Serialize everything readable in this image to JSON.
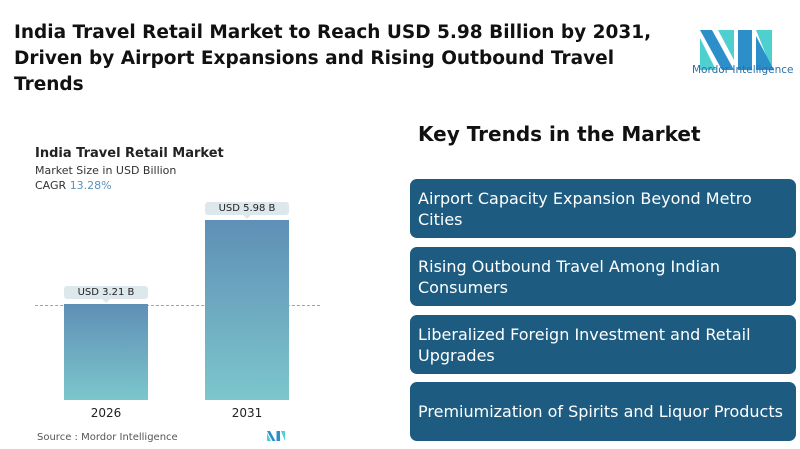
{
  "title": "India Travel Retail Market to Reach USD 5.98 Billion by 2031, Driven by Airport Expansions and Rising Outbound Travel Trends",
  "logo": {
    "text": "Mordor Intelligence",
    "colors": [
      "#2c8fc9",
      "#4fd0d0"
    ]
  },
  "chart_data": {
    "type": "bar",
    "title": "India Travel Retail Market",
    "subtitle": "Market Size in USD Billion",
    "cagr_label": "CAGR",
    "cagr_value": "13.28%",
    "categories": [
      "2026",
      "2031"
    ],
    "values": [
      3.21,
      5.98
    ],
    "data_labels": [
      "USD 3.21 B",
      "USD 5.98 B"
    ],
    "ylim": [
      0,
      6.4
    ],
    "grid": false,
    "colors": {
      "top": "#5f8fb6",
      "bottom": "#7cc6cc"
    }
  },
  "source": "Source :  Mordor Intelligence",
  "key_trends": {
    "heading": "Key Trends in the Market",
    "items": [
      "Airport Capacity Expansion Beyond Metro Cities",
      "Rising Outbound Travel Among Indian Consumers",
      "Liberalized Foreign Investment and Retail Upgrades",
      "Premiumization of Spirits and Liquor Products"
    ],
    "color": "#1d5c80"
  }
}
